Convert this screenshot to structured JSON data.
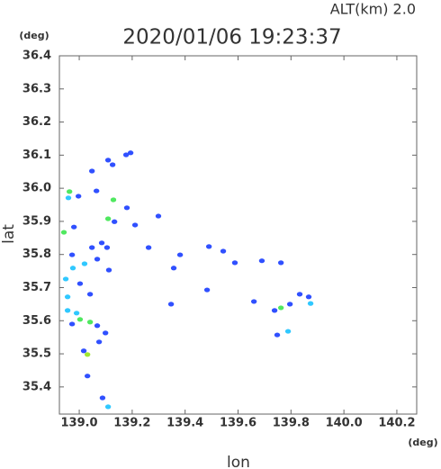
{
  "chart_data": {
    "type": "scatter",
    "header": "ALT(km)  2.0",
    "title": "2020/01/06 19:23:37",
    "x_unit": "(deg)",
    "y_unit": "(deg)",
    "xlabel": "lon",
    "ylabel": "lat",
    "xlim": [
      138.925,
      140.275
    ],
    "ylim": [
      35.318,
      36.4
    ],
    "xticks": [
      {
        "value": 139,
        "label": "139.0"
      },
      139.2,
      139.4,
      139.6,
      139.8,
      {
        "value": 140,
        "label": "140.0"
      },
      140.2
    ],
    "yticks": [
      35.4,
      35.5,
      35.6,
      35.7,
      35.8,
      35.9,
      {
        "value": 36,
        "label": "36.0"
      },
      36.1,
      36.2,
      36.3,
      36.4
    ],
    "grid": false,
    "series": [
      {
        "color": "#3050ff",
        "x": [
          139.194,
          139.177,
          139.109,
          139.126,
          139.048,
          138.997,
          139.065,
          139.18,
          139.299,
          139.211,
          138.98,
          139.085,
          139.048,
          139.105,
          138.973,
          139.068,
          139.112,
          139.381,
          139.49,
          139.544,
          139.588,
          139.69,
          139.762,
          139.003,
          139.041,
          139.068,
          139.099,
          138.973,
          139.075,
          139.017,
          139.031,
          139.088,
          139.347,
          139.483,
          139.66,
          139.738,
          139.796,
          139.833,
          139.867,
          139.748,
          139.357,
          139.262,
          139.133
        ],
        "y": [
          36.107,
          36.101,
          36.085,
          36.071,
          36.052,
          35.976,
          35.992,
          35.941,
          35.916,
          35.889,
          35.883,
          35.835,
          35.821,
          35.821,
          35.799,
          35.786,
          35.753,
          35.799,
          35.824,
          35.81,
          35.775,
          35.781,
          35.775,
          35.712,
          35.68,
          35.585,
          35.563,
          35.59,
          35.536,
          35.509,
          35.433,
          35.367,
          35.65,
          35.693,
          35.658,
          35.631,
          35.65,
          35.68,
          35.672,
          35.557,
          35.759,
          35.821,
          35.899
        ]
      },
      {
        "color": "#30c8ff",
        "x": [
          138.959,
          139.02,
          138.976,
          138.949,
          138.956,
          138.956,
          138.99,
          139.874,
          139.789,
          139.109
        ],
        "y": [
          35.971,
          35.772,
          35.759,
          35.726,
          35.672,
          35.631,
          35.623,
          35.652,
          35.568,
          35.34
        ]
      },
      {
        "color": "#50e860",
        "x": [
          138.963,
          139.129,
          139.109,
          138.942,
          139.003,
          139.041,
          139.762
        ],
        "y": [
          35.99,
          35.965,
          35.908,
          35.867,
          35.604,
          35.596,
          35.639
        ]
      },
      {
        "color": "#a0e830",
        "x": [
          139.031
        ],
        "y": [
          35.498
        ]
      }
    ]
  }
}
